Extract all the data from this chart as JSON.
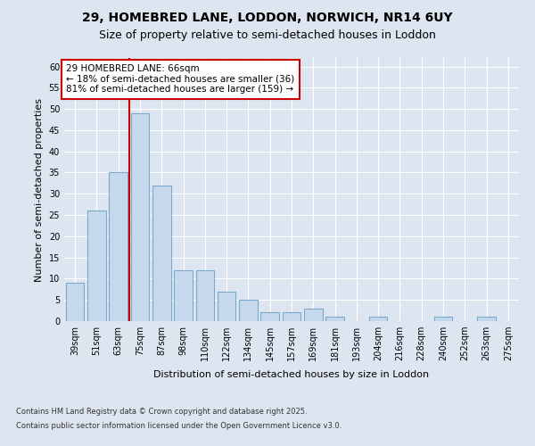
{
  "title1": "29, HOMEBRED LANE, LODDON, NORWICH, NR14 6UY",
  "title2": "Size of property relative to semi-detached houses in Loddon",
  "xlabel": "Distribution of semi-detached houses by size in Loddon",
  "ylabel": "Number of semi-detached properties",
  "categories": [
    "39sqm",
    "51sqm",
    "63sqm",
    "75sqm",
    "87sqm",
    "98sqm",
    "110sqm",
    "122sqm",
    "134sqm",
    "145sqm",
    "157sqm",
    "169sqm",
    "181sqm",
    "193sqm",
    "204sqm",
    "216sqm",
    "228sqm",
    "240sqm",
    "252sqm",
    "263sqm",
    "275sqm"
  ],
  "values": [
    9,
    26,
    35,
    49,
    32,
    12,
    12,
    7,
    5,
    2,
    2,
    3,
    1,
    0,
    1,
    0,
    0,
    1,
    0,
    1,
    0
  ],
  "bar_color": "#c6d9ec",
  "bar_edge_color": "#7aaacb",
  "property_line_x": 2.5,
  "annotation_text": "29 HOMEBRED LANE: 66sqm\n← 18% of semi-detached houses are smaller (36)\n81% of semi-detached houses are larger (159) →",
  "ylim": [
    0,
    62
  ],
  "yticks": [
    0,
    5,
    10,
    15,
    20,
    25,
    30,
    35,
    40,
    45,
    50,
    55,
    60
  ],
  "footer1": "Contains HM Land Registry data © Crown copyright and database right 2025.",
  "footer2": "Contains public sector information licensed under the Open Government Licence v3.0.",
  "background_color": "#dde6f0",
  "plot_bg_color": "#dde6f0",
  "title1_fontsize": 10,
  "title2_fontsize": 9,
  "annotation_fontsize": 7.5,
  "axis_label_fontsize": 8,
  "tick_fontsize": 7,
  "annotation_box_color": "#ffffff",
  "annotation_border_color": "#cc0000",
  "line_color": "#cc0000",
  "grid_color": "#ffffff",
  "footer_fontsize": 6,
  "ylabel_fontsize": 8
}
